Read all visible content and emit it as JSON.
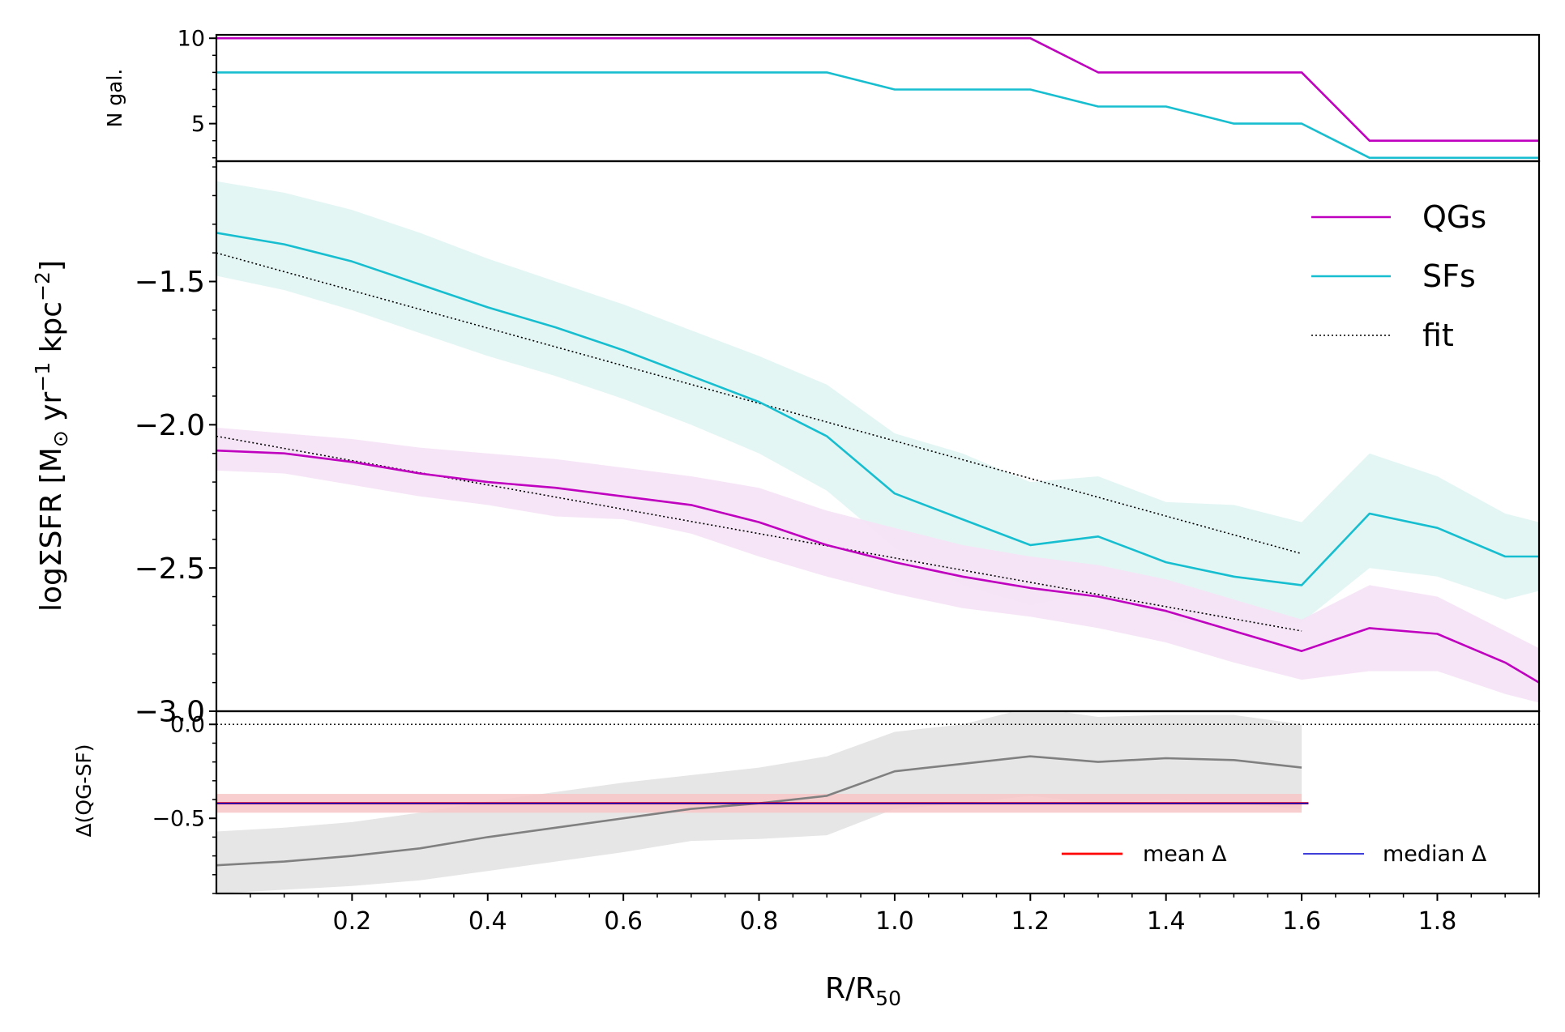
{
  "chart_data": {
    "type": "line",
    "xlabel": "R/R",
    "xlabel_sub": "50",
    "xlim": [
      0.0,
      1.95
    ],
    "x_ticks": [
      0.2,
      0.4,
      0.6,
      0.8,
      1.0,
      1.2,
      1.4,
      1.6,
      1.8
    ],
    "x_tick_labels": [
      "0.2",
      "0.4",
      "0.6",
      "0.8",
      "1.0",
      "1.2",
      "1.4",
      "1.6",
      "1.8"
    ],
    "panels": {
      "top": {
        "ylabel": "N gal.",
        "ylim": [
          2.8,
          10.2
        ],
        "y_ticks": [
          5,
          10
        ],
        "y_tick_labels": [
          "5",
          "10"
        ],
        "series": [
          {
            "name": "QGs",
            "color": "#bf00bf",
            "x": [
              0.0,
              1.2,
              1.3,
              1.6,
              1.7,
              1.95
            ],
            "y": [
              10,
              10,
              8,
              8,
              4,
              4
            ]
          },
          {
            "name": "SFs",
            "color": "#17becf",
            "x": [
              0.0,
              0.9,
              1.0,
              1.2,
              1.3,
              1.4,
              1.5,
              1.6,
              1.7,
              1.95
            ],
            "y": [
              8,
              8,
              7,
              7,
              6,
              6,
              5,
              5,
              3,
              3
            ]
          }
        ]
      },
      "main": {
        "ylabel_prefix": "logΣSFR [M",
        "ylabel_sub": "⊙",
        "ylabel_mid1": " yr",
        "ylabel_sup1": "−1",
        "ylabel_mid2": " kpc",
        "ylabel_sup2": "−2",
        "ylabel_suffix": "]",
        "ylim": [
          -3.0,
          -1.08
        ],
        "y_ticks": [
          -3.0,
          -2.5,
          -2.0,
          -1.5
        ],
        "y_tick_labels": [
          "−3.0",
          "−2.5",
          "−2.0",
          "−1.5"
        ],
        "series": [
          {
            "name": "QGs",
            "color": "#bf00bf",
            "band": "#f5e2f5",
            "x": [
              0.0,
              0.1,
              0.2,
              0.3,
              0.4,
              0.5,
              0.6,
              0.7,
              0.8,
              0.9,
              1.0,
              1.1,
              1.2,
              1.3,
              1.4,
              1.5,
              1.6,
              1.7,
              1.8,
              1.9,
              1.95
            ],
            "y": [
              -2.09,
              -2.1,
              -2.13,
              -2.17,
              -2.2,
              -2.22,
              -2.25,
              -2.28,
              -2.34,
              -2.42,
              -2.48,
              -2.53,
              -2.57,
              -2.6,
              -2.65,
              -2.72,
              -2.79,
              -2.71,
              -2.73,
              -2.83,
              -2.9
            ],
            "lower": [
              -2.16,
              -2.17,
              -2.21,
              -2.25,
              -2.28,
              -2.32,
              -2.33,
              -2.38,
              -2.46,
              -2.53,
              -2.59,
              -2.64,
              -2.67,
              -2.71,
              -2.76,
              -2.83,
              -2.89,
              -2.86,
              -2.86,
              -2.94,
              -2.97
            ],
            "upper": [
              -2.01,
              -2.03,
              -2.05,
              -2.08,
              -2.1,
              -2.12,
              -2.15,
              -2.18,
              -2.22,
              -2.3,
              -2.36,
              -2.42,
              -2.46,
              -2.49,
              -2.54,
              -2.61,
              -2.68,
              -2.56,
              -2.6,
              -2.72,
              -2.78
            ]
          },
          {
            "name": "SFs",
            "color": "#17becf",
            "band": "#e1f5f3",
            "x": [
              0.0,
              0.1,
              0.2,
              0.3,
              0.4,
              0.5,
              0.6,
              0.7,
              0.8,
              0.9,
              1.0,
              1.1,
              1.2,
              1.3,
              1.4,
              1.5,
              1.6,
              1.7,
              1.8,
              1.9,
              1.95
            ],
            "y": [
              -1.33,
              -1.37,
              -1.43,
              -1.51,
              -1.59,
              -1.66,
              -1.74,
              -1.83,
              -1.92,
              -2.04,
              -2.24,
              -2.33,
              -2.42,
              -2.39,
              -2.48,
              -2.53,
              -2.56,
              -2.31,
              -2.36,
              -2.46,
              -2.46
            ],
            "lower": [
              -1.48,
              -1.53,
              -1.6,
              -1.68,
              -1.76,
              -1.83,
              -1.91,
              -2.0,
              -2.1,
              -2.23,
              -2.43,
              -2.56,
              -2.63,
              -2.58,
              -2.68,
              -2.72,
              -2.69,
              -2.5,
              -2.53,
              -2.61,
              -2.58
            ],
            "upper": [
              -1.15,
              -1.19,
              -1.25,
              -1.33,
              -1.42,
              -1.5,
              -1.58,
              -1.67,
              -1.76,
              -1.86,
              -2.03,
              -2.1,
              -2.2,
              -2.18,
              -2.27,
              -2.28,
              -2.34,
              -2.1,
              -2.18,
              -2.31,
              -2.34
            ]
          }
        ],
        "fits": [
          {
            "name": "fit",
            "color": "#000000",
            "x": [
              0.0,
              1.6
            ],
            "y": [
              -1.4,
              -2.45
            ]
          },
          {
            "name": "fit",
            "color": "#000000",
            "x": [
              0.0,
              1.6
            ],
            "y": [
              -2.04,
              -2.72
            ]
          }
        ],
        "legend": {
          "placement": "top-right",
          "items": [
            {
              "label": "QGs",
              "color": "#bf00bf",
              "style": "solid"
            },
            {
              "label": "SFs",
              "color": "#17becf",
              "style": "solid"
            },
            {
              "label": "fit",
              "color": "#000000",
              "style": "dotted"
            }
          ]
        }
      },
      "bottom": {
        "ylabel": "Δ(QG-SF)",
        "ylim": [
          -0.9,
          0.07
        ],
        "y_ticks": [
          0.0,
          -0.5
        ],
        "y_tick_labels": [
          "0.0",
          "−0.5"
        ],
        "zero_line": 0.0,
        "diff": {
          "name": "Δ",
          "color": "#808080",
          "band": "#e6e6e6",
          "x": [
            0.0,
            0.1,
            0.2,
            0.3,
            0.4,
            0.5,
            0.6,
            0.7,
            0.8,
            0.9,
            1.0,
            1.1,
            1.2,
            1.3,
            1.4,
            1.5,
            1.6
          ],
          "y": [
            -0.75,
            -0.73,
            -0.7,
            -0.66,
            -0.6,
            -0.55,
            -0.5,
            -0.45,
            -0.42,
            -0.38,
            -0.25,
            -0.21,
            -0.17,
            -0.2,
            -0.18,
            -0.19,
            -0.23
          ],
          "lower": [
            -0.9,
            -0.88,
            -0.86,
            -0.83,
            -0.78,
            -0.73,
            -0.68,
            -0.62,
            -0.61,
            -0.59,
            -0.45,
            -0.42,
            -0.38,
            -0.42,
            -0.4,
            -0.42,
            -0.45
          ],
          "upper": [
            -0.57,
            -0.55,
            -0.52,
            -0.47,
            -0.41,
            -0.36,
            -0.31,
            -0.27,
            -0.23,
            -0.17,
            -0.04,
            0.0,
            0.09,
            0.04,
            0.05,
            0.05,
            0.0
          ]
        },
        "mean": {
          "label": "mean Δ",
          "value": -0.42,
          "x_end": 1.61,
          "band_lo": -0.47,
          "band_hi": -0.37,
          "color": "#ff0000",
          "band": "#f7c6c6"
        },
        "median": {
          "label": "median Δ",
          "value": -0.42,
          "x_end": 1.61,
          "color": "#0000cc"
        },
        "legend": {
          "placement": "lower-right"
        }
      }
    }
  }
}
